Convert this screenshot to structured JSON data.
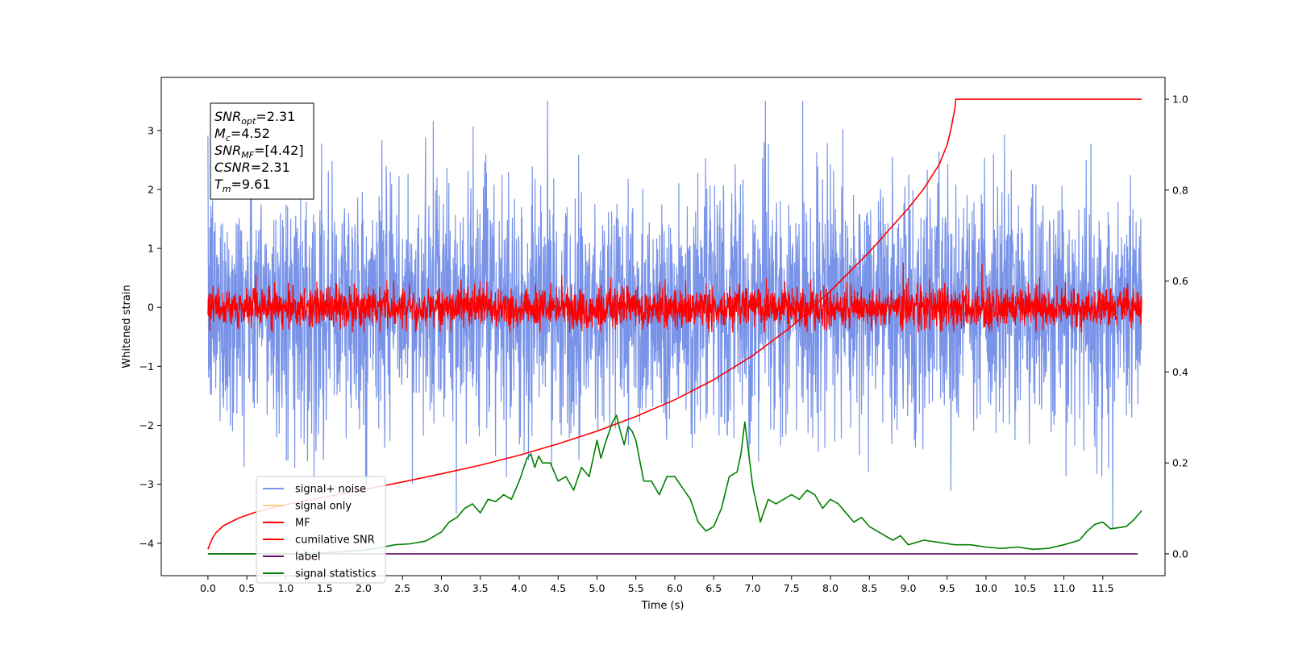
{
  "chart_data": {
    "type": "line",
    "xlabel": "Time (s)",
    "ylabel": "Whitened strain",
    "xlim": [
      -0.6,
      12.3
    ],
    "ylim": [
      -4.55,
      3.9
    ],
    "y2lim": [
      -0.048,
      1.048
    ],
    "xticks": [
      "0.0",
      "0.5",
      "1.0",
      "1.5",
      "2.0",
      "2.5",
      "3.0",
      "3.5",
      "4.0",
      "4.5",
      "5.0",
      "5.5",
      "6.0",
      "6.5",
      "7.0",
      "7.5",
      "8.0",
      "8.5",
      "9.0",
      "9.5",
      "10.0",
      "10.5",
      "11.0",
      "11.5"
    ],
    "xtick_values": [
      0.0,
      0.5,
      1.0,
      1.5,
      2.0,
      2.5,
      3.0,
      3.5,
      4.0,
      4.5,
      5.0,
      5.5,
      6.0,
      6.5,
      7.0,
      7.5,
      8.0,
      8.5,
      9.0,
      9.5,
      10.0,
      10.5,
      11.0,
      11.5
    ],
    "yticks": [
      "−4",
      "−3",
      "−2",
      "−1",
      "0",
      "1",
      "2",
      "3"
    ],
    "ytick_values": [
      -4,
      -3,
      -2,
      -1,
      0,
      1,
      2,
      3
    ],
    "y2ticks": [
      "0.0",
      "0.2",
      "0.4",
      "0.6",
      "0.8",
      "1.0"
    ],
    "y2tick_values": [
      0.0,
      0.2,
      0.4,
      0.6,
      0.8,
      1.0
    ],
    "legend_position": "lower-left",
    "series": [
      {
        "name": "signal+ noise",
        "color": "#7893e8",
        "axis": "left",
        "kind": "noise",
        "x_range": [
          0.0,
          12.0
        ],
        "std": 1.05,
        "clip": [
          -4.15,
          3.5
        ],
        "sample_step": 0.004
      },
      {
        "name": "signal only",
        "color": "#ffcc80",
        "axis": "left",
        "kind": "empty"
      },
      {
        "name": "MF",
        "color": "#ff0000",
        "axis": "left",
        "kind": "noise",
        "x_range": [
          0.0,
          12.0
        ],
        "std": 0.17,
        "clip": [
          -0.42,
          1.0
        ],
        "sample_step": 0.004
      },
      {
        "name": "cumilative SNR",
        "color": "#ff0000",
        "axis": "right",
        "x": [
          0.0,
          0.05,
          0.1,
          0.2,
          0.4,
          0.6,
          0.8,
          1.0,
          1.5,
          2.0,
          2.5,
          3.0,
          3.5,
          4.0,
          4.5,
          5.0,
          5.5,
          6.0,
          6.5,
          7.0,
          7.5,
          8.0,
          8.5,
          9.0,
          9.2,
          9.4,
          9.5,
          9.55,
          9.6,
          9.61,
          12.0
        ],
        "y": [
          0.01,
          0.032,
          0.046,
          0.062,
          0.079,
          0.091,
          0.1,
          0.108,
          0.125,
          0.141,
          0.158,
          0.176,
          0.195,
          0.217,
          0.242,
          0.27,
          0.302,
          0.339,
          0.383,
          0.436,
          0.5,
          0.578,
          0.664,
          0.76,
          0.803,
          0.857,
          0.9,
          0.935,
          0.98,
          1.0,
          1.0
        ]
      },
      {
        "name": "label",
        "color": "#6a0f6a",
        "axis": "right",
        "x": [
          0.0,
          11.95
        ],
        "y": [
          0.0,
          0.0
        ]
      },
      {
        "name": "signal statistics",
        "color": "#008000",
        "axis": "right",
        "x": [
          0.0,
          1.0,
          1.5,
          2.0,
          2.2,
          2.4,
          2.6,
          2.8,
          3.0,
          3.1,
          3.2,
          3.3,
          3.4,
          3.5,
          3.6,
          3.7,
          3.8,
          3.9,
          4.0,
          4.1,
          4.15,
          4.2,
          4.25,
          4.3,
          4.4,
          4.5,
          4.6,
          4.7,
          4.8,
          4.9,
          5.0,
          5.05,
          5.1,
          5.2,
          5.25,
          5.3,
          5.35,
          5.4,
          5.45,
          5.5,
          5.6,
          5.7,
          5.8,
          5.9,
          6.0,
          6.1,
          6.2,
          6.3,
          6.4,
          6.5,
          6.6,
          6.7,
          6.8,
          6.85,
          6.9,
          6.95,
          7.0,
          7.1,
          7.2,
          7.3,
          7.4,
          7.5,
          7.6,
          7.7,
          7.8,
          7.9,
          8.0,
          8.1,
          8.2,
          8.3,
          8.4,
          8.5,
          8.6,
          8.7,
          8.8,
          8.9,
          9.0,
          9.2,
          9.4,
          9.6,
          9.8,
          10.0,
          10.2,
          10.4,
          10.6,
          10.8,
          11.0,
          11.2,
          11.3,
          11.4,
          11.5,
          11.6,
          11.8,
          11.9,
          12.0
        ],
        "y": [
          0.0,
          0.0,
          0.002,
          0.008,
          0.013,
          0.02,
          0.022,
          0.028,
          0.048,
          0.07,
          0.08,
          0.1,
          0.11,
          0.09,
          0.12,
          0.115,
          0.13,
          0.12,
          0.16,
          0.21,
          0.22,
          0.19,
          0.215,
          0.2,
          0.2,
          0.16,
          0.17,
          0.14,
          0.19,
          0.17,
          0.25,
          0.21,
          0.24,
          0.29,
          0.305,
          0.27,
          0.24,
          0.28,
          0.27,
          0.25,
          0.16,
          0.16,
          0.13,
          0.17,
          0.17,
          0.145,
          0.12,
          0.07,
          0.05,
          0.06,
          0.1,
          0.17,
          0.18,
          0.22,
          0.29,
          0.22,
          0.15,
          0.07,
          0.12,
          0.11,
          0.12,
          0.13,
          0.12,
          0.14,
          0.13,
          0.1,
          0.12,
          0.11,
          0.09,
          0.07,
          0.08,
          0.06,
          0.05,
          0.04,
          0.03,
          0.04,
          0.02,
          0.03,
          0.025,
          0.02,
          0.02,
          0.015,
          0.012,
          0.015,
          0.01,
          0.012,
          0.02,
          0.03,
          0.05,
          0.065,
          0.07,
          0.055,
          0.06,
          0.075,
          0.095
        ]
      }
    ],
    "annotation": [
      {
        "pre": "SNR",
        "sub": "opt",
        "post": "=2.31"
      },
      {
        "pre": "M",
        "sub": "c",
        "post": "=4.52"
      },
      {
        "pre": "SNR",
        "sub": "MF",
        "post": "=[4.42]"
      },
      {
        "pre": "CSNR",
        "sub": "",
        "post": "=2.31"
      },
      {
        "pre": "T",
        "sub": "m",
        "post": "=9.61"
      }
    ]
  }
}
